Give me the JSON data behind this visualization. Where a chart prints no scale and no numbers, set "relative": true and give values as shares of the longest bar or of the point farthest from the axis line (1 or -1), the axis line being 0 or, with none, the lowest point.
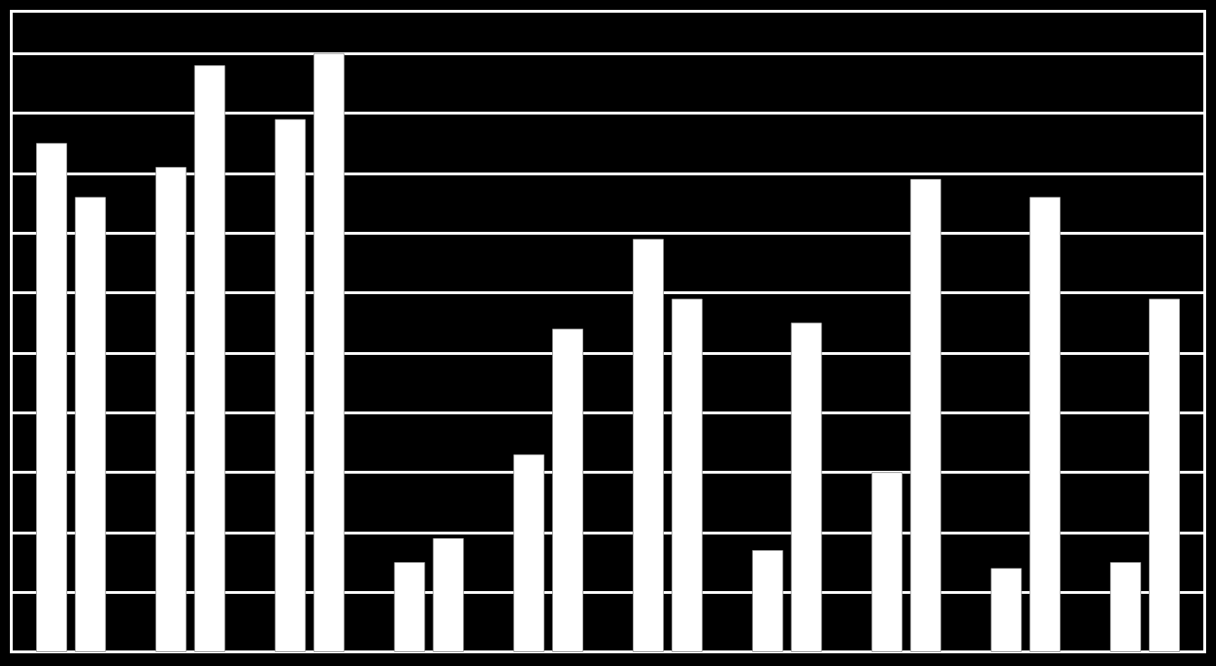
{
  "chart_data": {
    "type": "bar",
    "relative": true,
    "grid": "y",
    "categories": [
      null,
      null,
      null,
      null,
      null,
      null,
      null,
      null,
      null,
      null
    ],
    "series": [
      {
        "color": "#ffffff",
        "values": [
          0.85,
          0.81,
          0.89,
          0.15,
          0.33,
          0.69,
          0.17,
          0.3,
          0.14,
          0.15
        ]
      },
      {
        "color": "#ffffff",
        "values": [
          0.76,
          0.98,
          1,
          0.19,
          0.54,
          0.59,
          0.55,
          0.79,
          0.76,
          0.59
        ]
      }
    ]
  }
}
